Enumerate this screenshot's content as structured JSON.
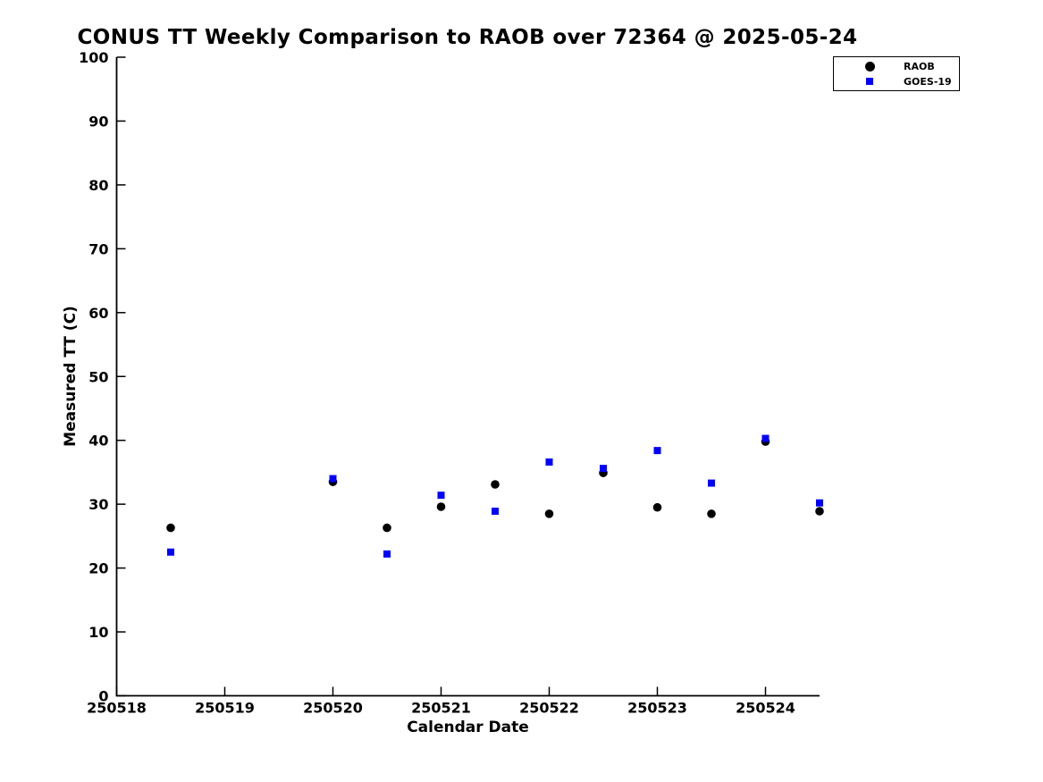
{
  "chart_data": {
    "type": "scatter",
    "title": "CONUS TT Weekly Comparison to RAOB over 72364 @ 2025-05-24",
    "xlabel": "Calendar Date",
    "ylabel": "Measured TT (C)",
    "xlim": [
      250518,
      250524.5
    ],
    "ylim": [
      0,
      100
    ],
    "xticks": [
      250518,
      250519,
      250520,
      250521,
      250522,
      250523,
      250524
    ],
    "yticks": [
      0,
      10,
      20,
      30,
      40,
      50,
      60,
      70,
      80,
      90,
      100
    ],
    "grid": false,
    "legend_position": "top-right-outside-axes",
    "axis_color": "#000000",
    "background_color": "#ffffff",
    "x": [
      250518.5,
      250520.0,
      250520.5,
      250521.0,
      250521.5,
      250522.0,
      250522.5,
      250523.0,
      250523.5,
      250524.0,
      250524.5
    ],
    "series": [
      {
        "name": "RAOB",
        "marker": "circle",
        "color": "#000000",
        "values": [
          26.3,
          33.5,
          26.3,
          29.6,
          33.1,
          28.5,
          34.9,
          29.5,
          28.5,
          39.8,
          28.9
        ]
      },
      {
        "name": "GOES-19",
        "marker": "square",
        "color": "#0000ff",
        "values": [
          22.5,
          34.0,
          22.2,
          31.4,
          28.9,
          36.6,
          35.6,
          38.4,
          33.3,
          40.3,
          30.2
        ]
      }
    ]
  }
}
